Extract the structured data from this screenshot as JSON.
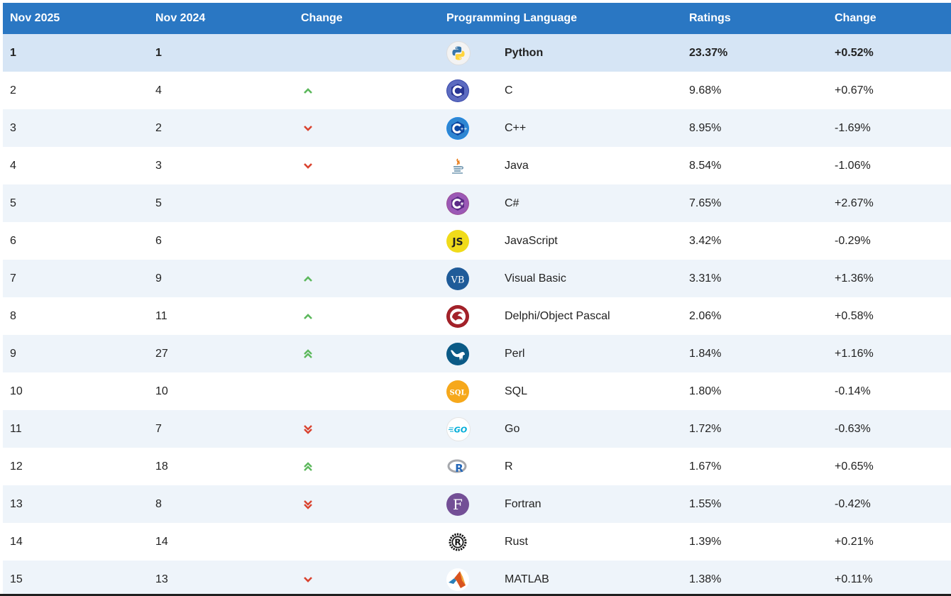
{
  "table": {
    "headers": {
      "current_month": "Nov 2025",
      "previous_month": "Nov 2024",
      "change": "Change",
      "language": "Programming Language",
      "ratings": "Ratings",
      "rating_change": "Change"
    },
    "rows": [
      {
        "rank_now": "1",
        "rank_prev": "1",
        "trend": "none",
        "icon": "python-logo-icon",
        "language": "Python",
        "rating": "23.37%",
        "change": "+0.52%"
      },
      {
        "rank_now": "2",
        "rank_prev": "4",
        "trend": "up",
        "icon": "c-logo-icon",
        "language": "C",
        "rating": "9.68%",
        "change": "+0.67%"
      },
      {
        "rank_now": "3",
        "rank_prev": "2",
        "trend": "down",
        "icon": "cpp-logo-icon",
        "language": "C++",
        "rating": "8.95%",
        "change": "-1.69%"
      },
      {
        "rank_now": "4",
        "rank_prev": "3",
        "trend": "down",
        "icon": "java-logo-icon",
        "language": "Java",
        "rating": "8.54%",
        "change": "-1.06%"
      },
      {
        "rank_now": "5",
        "rank_prev": "5",
        "trend": "none",
        "icon": "csharp-logo-icon",
        "language": "C#",
        "rating": "7.65%",
        "change": "+2.67%"
      },
      {
        "rank_now": "6",
        "rank_prev": "6",
        "trend": "none",
        "icon": "javascript-logo-icon",
        "language": "JavaScript",
        "rating": "3.42%",
        "change": "-0.29%"
      },
      {
        "rank_now": "7",
        "rank_prev": "9",
        "trend": "up",
        "icon": "visual-basic-logo-icon",
        "language": "Visual Basic",
        "rating": "3.31%",
        "change": "+1.36%"
      },
      {
        "rank_now": "8",
        "rank_prev": "11",
        "trend": "up",
        "icon": "delphi-logo-icon",
        "language": "Delphi/Object Pascal",
        "rating": "2.06%",
        "change": "+0.58%"
      },
      {
        "rank_now": "9",
        "rank_prev": "27",
        "trend": "up-double",
        "icon": "perl-logo-icon",
        "language": "Perl",
        "rating": "1.84%",
        "change": "+1.16%"
      },
      {
        "rank_now": "10",
        "rank_prev": "10",
        "trend": "none",
        "icon": "sql-logo-icon",
        "language": "SQL",
        "rating": "1.80%",
        "change": "-0.14%"
      },
      {
        "rank_now": "11",
        "rank_prev": "7",
        "trend": "down-double",
        "icon": "go-logo-icon",
        "language": "Go",
        "rating": "1.72%",
        "change": "-0.63%"
      },
      {
        "rank_now": "12",
        "rank_prev": "18",
        "trend": "up-double",
        "icon": "r-logo-icon",
        "language": "R",
        "rating": "1.67%",
        "change": "+0.65%"
      },
      {
        "rank_now": "13",
        "rank_prev": "8",
        "trend": "down-double",
        "icon": "fortran-logo-icon",
        "language": "Fortran",
        "rating": "1.55%",
        "change": "-0.42%"
      },
      {
        "rank_now": "14",
        "rank_prev": "14",
        "trend": "none",
        "icon": "rust-logo-icon",
        "language": "Rust",
        "rating": "1.39%",
        "change": "+0.21%"
      },
      {
        "rank_now": "15",
        "rank_prev": "13",
        "trend": "down",
        "icon": "matlab-logo-icon",
        "language": "MATLAB",
        "rating": "1.38%",
        "change": "+0.11%"
      }
    ]
  },
  "colors": {
    "header_bg": "#2a77c3",
    "top_row_bg": "#d6e5f5",
    "alt_row_bg": "#eef4fa",
    "up_arrow": "#5cb85c",
    "down_arrow": "#d9432f"
  },
  "logos": {
    "javascript": "JS",
    "visual_basic": "VB",
    "sql": "SQL",
    "go": "GO",
    "r": "R",
    "fortran": "F",
    "rust": "R"
  }
}
